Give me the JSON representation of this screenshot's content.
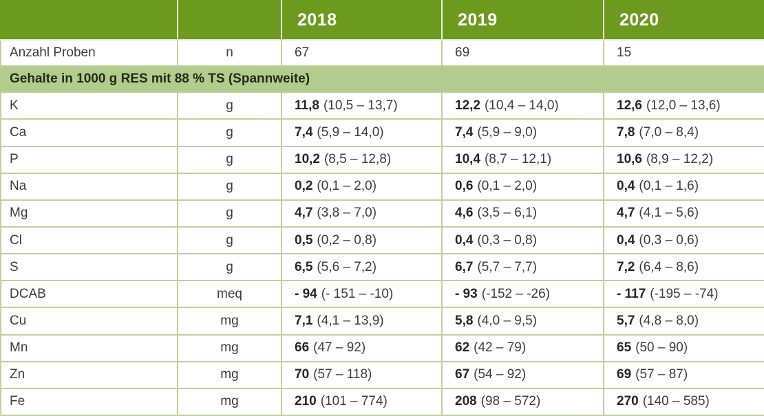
{
  "colors": {
    "header-green": "#6b9a1f",
    "band-green": "#b2cc8e",
    "border-green": "#bdd19b",
    "header-divider": "#e9efdb",
    "text": "#3c3c3c",
    "text-bold": "#262626",
    "section-text": "#242b12"
  },
  "table": {
    "header": {
      "label_col": "",
      "unit_col": "",
      "years": [
        "2018",
        "2019",
        "2020"
      ]
    },
    "samples": {
      "label": "Anzahl Proben",
      "unit": "n",
      "values": [
        "67",
        "69",
        "15"
      ]
    },
    "section_title": "Gehalte in 1000 g RES mit 88 % TS (Spannweite)",
    "rows": [
      {
        "label": "K",
        "unit": "g",
        "values": [
          {
            "mean": "11,8",
            "range": "(10,5 – 13,7)"
          },
          {
            "mean": "12,2",
            "range": "(10,4 – 14,0)"
          },
          {
            "mean": "12,6",
            "range": "(12,0 – 13,6)"
          }
        ]
      },
      {
        "label": "Ca",
        "unit": "g",
        "values": [
          {
            "mean": "7,4",
            "range": "(5,9 – 14,0)"
          },
          {
            "mean": "7,4",
            "range": "(5,9 – 9,0)"
          },
          {
            "mean": "7,8",
            "range": "(7,0 – 8,4)"
          }
        ]
      },
      {
        "label": "P",
        "unit": "g",
        "values": [
          {
            "mean": "10,2",
            "range": "(8,5 – 12,8)"
          },
          {
            "mean": "10,4",
            "range": "(8,7 – 12,1)"
          },
          {
            "mean": "10,6",
            "range": "(8,9 – 12,2)"
          }
        ]
      },
      {
        "label": "Na",
        "unit": "g",
        "values": [
          {
            "mean": "0,2",
            "range": "(0,1 – 2,0)"
          },
          {
            "mean": "0,6",
            "range": "(0,1 – 2,0)"
          },
          {
            "mean": "0,4",
            "range": "(0,1 – 1,6)"
          }
        ]
      },
      {
        "label": "Mg",
        "unit": "g",
        "values": [
          {
            "mean": "4,7",
            "range": "(3,8 – 7,0)"
          },
          {
            "mean": "4,6",
            "range": "(3,5 – 6,1)"
          },
          {
            "mean": "4,7",
            "range": "(4,1 – 5,6)"
          }
        ]
      },
      {
        "label": "Cl",
        "unit": "g",
        "values": [
          {
            "mean": "0,5",
            "range": "(0,2 – 0,8)"
          },
          {
            "mean": "0,4",
            "range": "(0,3 – 0,8)"
          },
          {
            "mean": "0,4",
            "range": "(0,3 – 0,6)"
          }
        ]
      },
      {
        "label": "S",
        "unit": "g",
        "values": [
          {
            "mean": "6,5",
            "range": "(5,6 – 7,2)"
          },
          {
            "mean": "6,7",
            "range": "(5,7 – 7,7)"
          },
          {
            "mean": "7,2",
            "range": "(6,4 – 8,6)"
          }
        ]
      },
      {
        "label": "DCAB",
        "unit": "meq",
        "values": [
          {
            "mean": "- 94",
            "range": "(- 151 – -10)"
          },
          {
            "mean": "- 93",
            "range": "(-152 – -26)"
          },
          {
            "mean": "- 117",
            "range": "(-195 – -74)"
          }
        ]
      },
      {
        "label": "Cu",
        "unit": "mg",
        "values": [
          {
            "mean": "7,1",
            "range": "(4,1 – 13,9)"
          },
          {
            "mean": "5,8",
            "range": "(4,0 – 9,5)"
          },
          {
            "mean": "5,7",
            "range": "(4,8 – 8,0)"
          }
        ]
      },
      {
        "label": "Mn",
        "unit": "mg",
        "values": [
          {
            "mean": "66",
            "range": "(47 – 92)"
          },
          {
            "mean": "62",
            "range": "(42 – 79)"
          },
          {
            "mean": "65",
            "range": "(50 – 90)"
          }
        ]
      },
      {
        "label": "Zn",
        "unit": "mg",
        "values": [
          {
            "mean": "70",
            "range": "(57 – 118)"
          },
          {
            "mean": "67",
            "range": "(54 – 92)"
          },
          {
            "mean": "69",
            "range": "(57 – 87)"
          }
        ]
      },
      {
        "label": "Fe",
        "unit": "mg",
        "values": [
          {
            "mean": "210",
            "range": "(101 – 774)"
          },
          {
            "mean": "208",
            "range": "(98 – 572)"
          },
          {
            "mean": "270",
            "range": "(140 – 585)"
          }
        ]
      }
    ]
  }
}
